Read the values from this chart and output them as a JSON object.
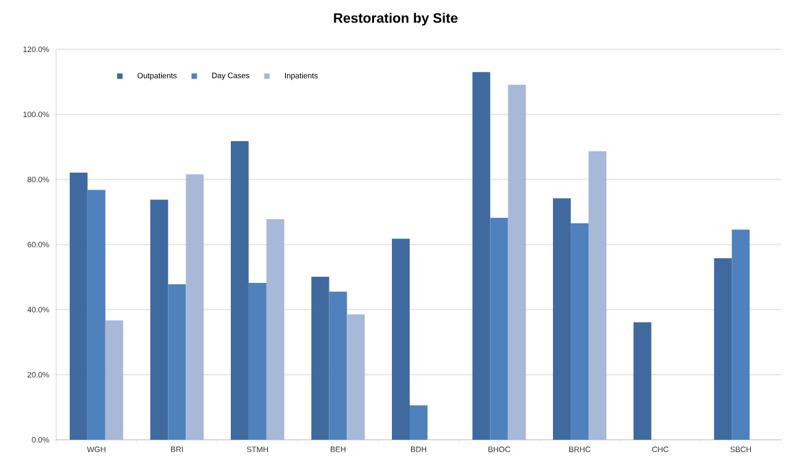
{
  "chart_data": {
    "type": "bar",
    "title": "Restoration by Site",
    "categories": [
      "WGH",
      "BRI",
      "STMH",
      "BEH",
      "BDH",
      "BHOC",
      "BRHC",
      "CHC",
      "SBCH"
    ],
    "series": [
      {
        "name": "Outpatients",
        "color": "#3f6aa0",
        "values": [
          82.1,
          73.8,
          91.8,
          50.1,
          61.8,
          113.0,
          74.2,
          36.1,
          55.8
        ]
      },
      {
        "name": "Day Cases",
        "color": "#4f81bd",
        "values": [
          76.8,
          47.8,
          48.2,
          45.5,
          10.6,
          68.2,
          66.5,
          null,
          64.6
        ]
      },
      {
        "name": "Inpatients",
        "color": "#a7b8d8",
        "values": [
          36.7,
          81.6,
          67.8,
          38.5,
          null,
          109.1,
          88.7,
          null,
          null
        ]
      }
    ],
    "ylim": [
      0,
      120
    ],
    "yticks": [
      {
        "value": 0,
        "label": "0.0%"
      },
      {
        "value": 20,
        "label": "20.0%"
      },
      {
        "value": 40,
        "label": "40.0%"
      },
      {
        "value": 60,
        "label": "60.0%"
      },
      {
        "value": 80,
        "label": "80.0%"
      },
      {
        "value": 100,
        "label": "100.0%"
      },
      {
        "value": 120,
        "label": "120.0%"
      }
    ],
    "grid": "y",
    "legend": "top left"
  }
}
